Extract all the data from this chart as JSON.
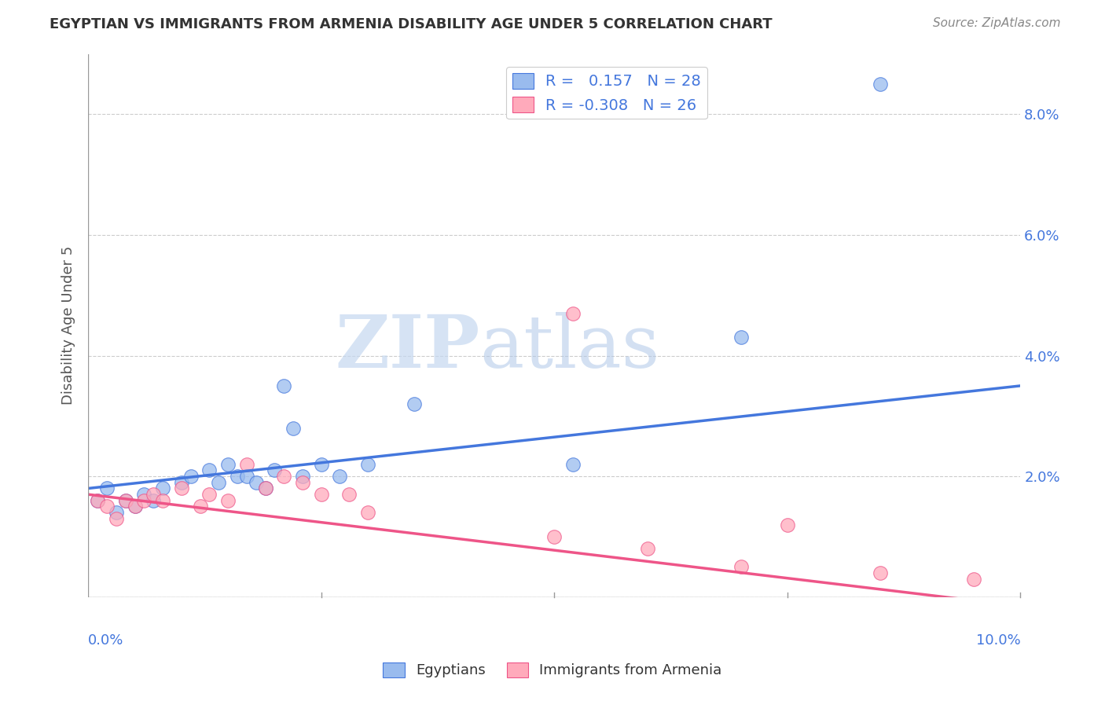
{
  "title": "EGYPTIAN VS IMMIGRANTS FROM ARMENIA DISABILITY AGE UNDER 5 CORRELATION CHART",
  "source": "Source: ZipAtlas.com",
  "ylabel": "Disability Age Under 5",
  "xlim": [
    0.0,
    0.1
  ],
  "ylim": [
    0.0,
    0.09
  ],
  "yticks": [
    0.0,
    0.02,
    0.04,
    0.06,
    0.08
  ],
  "ytick_labels": [
    "",
    "2.0%",
    "4.0%",
    "6.0%",
    "8.0%"
  ],
  "background_color": "#ffffff",
  "blue_color": "#99bbee",
  "pink_color": "#ffaabb",
  "blue_line_color": "#4477dd",
  "pink_line_color": "#ee5588",
  "R_blue": 0.157,
  "N_blue": 28,
  "R_pink": -0.308,
  "N_pink": 26,
  "blue_x": [
    0.001,
    0.002,
    0.003,
    0.004,
    0.005,
    0.006,
    0.007,
    0.008,
    0.01,
    0.011,
    0.013,
    0.014,
    0.015,
    0.016,
    0.017,
    0.018,
    0.019,
    0.02,
    0.021,
    0.022,
    0.023,
    0.025,
    0.027,
    0.03,
    0.035,
    0.052,
    0.07,
    0.085
  ],
  "blue_y": [
    0.016,
    0.018,
    0.014,
    0.016,
    0.015,
    0.017,
    0.016,
    0.018,
    0.019,
    0.02,
    0.021,
    0.019,
    0.022,
    0.02,
    0.02,
    0.019,
    0.018,
    0.021,
    0.035,
    0.028,
    0.02,
    0.022,
    0.02,
    0.022,
    0.032,
    0.022,
    0.043,
    0.085
  ],
  "pink_x": [
    0.001,
    0.002,
    0.003,
    0.004,
    0.005,
    0.006,
    0.007,
    0.008,
    0.01,
    0.012,
    0.013,
    0.015,
    0.017,
    0.019,
    0.021,
    0.023,
    0.025,
    0.028,
    0.03,
    0.05,
    0.052,
    0.06,
    0.07,
    0.075,
    0.085,
    0.095
  ],
  "pink_y": [
    0.016,
    0.015,
    0.013,
    0.016,
    0.015,
    0.016,
    0.017,
    0.016,
    0.018,
    0.015,
    0.017,
    0.016,
    0.022,
    0.018,
    0.02,
    0.019,
    0.017,
    0.017,
    0.014,
    0.01,
    0.047,
    0.008,
    0.005,
    0.012,
    0.004,
    0.003
  ],
  "watermark_zip": "ZIP",
  "watermark_atlas": "atlas",
  "blue_intercept": 0.018,
  "blue_slope": 0.17,
  "pink_intercept": 0.017,
  "pink_slope": -0.185
}
